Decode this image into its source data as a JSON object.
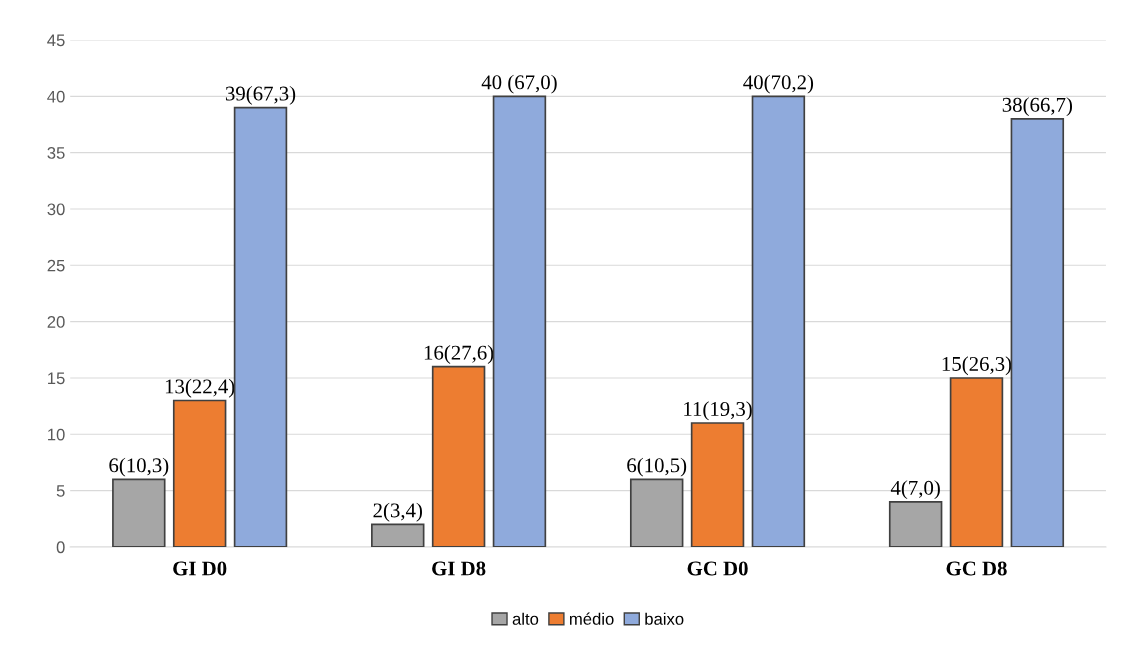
{
  "chart_data": {
    "type": "bar",
    "categories": [
      "GI D0",
      "GI D8",
      "GC D0",
      "GC D8"
    ],
    "series": [
      {
        "name": "alto",
        "color": "#a6a6a6",
        "values": [
          6,
          2,
          6,
          4
        ],
        "value_labels": [
          "6(10,3)",
          "2(3,4)",
          "6(10,5)",
          "4(7,0)"
        ]
      },
      {
        "name": "médio",
        "color": "#ed7d31",
        "values": [
          13,
          16,
          11,
          15
        ],
        "value_labels": [
          "13(22,4)",
          "16(27,6)",
          "11(19,3)",
          "15(26,3)"
        ]
      },
      {
        "name": "baixo",
        "color": "#8faadc",
        "values": [
          39,
          40,
          40,
          38
        ],
        "value_labels": [
          "39(67,3)",
          "40 (67,0)",
          "40(70,2)",
          "38(66,7)"
        ]
      }
    ],
    "ylim": [
      0,
      45
    ],
    "yticks": [
      0,
      5,
      10,
      15,
      20,
      25,
      30,
      35,
      40,
      45
    ],
    "grid": "y",
    "legend": "bottom"
  }
}
